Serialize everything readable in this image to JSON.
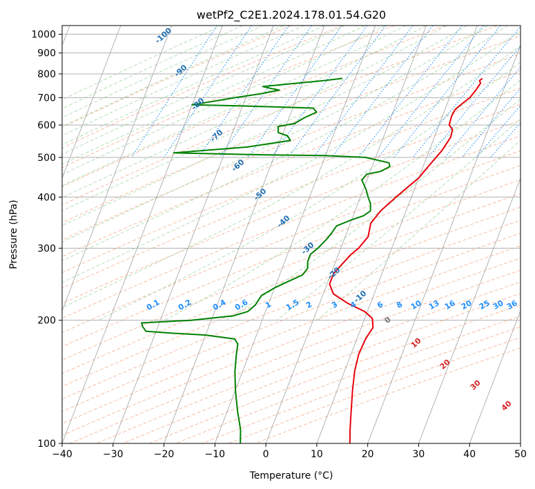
{
  "chart_data": {
    "type": "line",
    "title": "wetPf2_C2E1.2024.178.01.54.G20",
    "xlabel": "Temperature (°C)",
    "ylabel": "Pressure (hPa)",
    "xlim": [
      -40,
      50
    ],
    "ylim": [
      1050,
      100
    ],
    "y_scale": "log",
    "grid": true,
    "x_ticks": [
      -40,
      -30,
      -20,
      -10,
      0,
      10,
      20,
      30,
      40,
      50
    ],
    "x_tick_labels": [
      "−40",
      "−30",
      "−20",
      "−10",
      "0",
      "10",
      "20",
      "30",
      "40",
      "50"
    ],
    "y_ticks": [
      100,
      200,
      300,
      400,
      500,
      600,
      700,
      800,
      900,
      1000
    ],
    "y_tick_labels": [
      "100",
      "200",
      "300",
      "400",
      "500",
      "600",
      "700",
      "800",
      "900",
      "1000"
    ],
    "series": [
      {
        "color": "#e8000b",
        "points": [
          [
            15.0,
            780
          ],
          [
            14.6,
            770
          ],
          [
            15.0,
            760
          ],
          [
            14.6,
            730
          ],
          [
            14.0,
            700
          ],
          [
            13.0,
            678
          ],
          [
            12.0,
            655
          ],
          [
            11.8,
            630
          ],
          [
            12.0,
            600
          ],
          [
            13.0,
            585
          ],
          [
            13.2,
            560
          ],
          [
            12.5,
            520
          ],
          [
            11.0,
            475
          ],
          [
            10.0,
            445
          ],
          [
            9.0,
            430
          ],
          [
            7.0,
            400
          ],
          [
            5.0,
            370
          ],
          [
            4.0,
            345
          ],
          [
            4.5,
            320
          ],
          [
            3.5,
            300
          ],
          [
            2.5,
            290
          ],
          [
            1.5,
            275
          ],
          [
            0.5,
            260
          ],
          [
            0.5,
            245
          ],
          [
            2.0,
            232
          ],
          [
            5.5,
            220
          ],
          [
            9.5,
            210
          ],
          [
            11.5,
            202
          ],
          [
            12.3,
            192
          ],
          [
            11.7,
            180
          ],
          [
            11.5,
            165
          ],
          [
            12.0,
            150
          ],
          [
            13.0,
            135
          ],
          [
            14.5,
            118
          ],
          [
            15.5,
            108
          ],
          [
            16.5,
            100
          ]
        ]
      },
      {
        "color": "#008000",
        "points": [
          [
            -12.5,
            780
          ],
          [
            -16.0,
            770
          ],
          [
            -23.0,
            755
          ],
          [
            -27.5,
            745
          ],
          [
            -26.0,
            738
          ],
          [
            -24.0,
            730
          ],
          [
            -27.5,
            715
          ],
          [
            -32.0,
            700
          ],
          [
            -40.0,
            672
          ],
          [
            -30.0,
            668
          ],
          [
            -16.0,
            660
          ],
          [
            -15.0,
            645
          ],
          [
            -17.0,
            625
          ],
          [
            -18.5,
            605
          ],
          [
            -21.5,
            595
          ],
          [
            -21.0,
            575
          ],
          [
            -19.0,
            565
          ],
          [
            -18.0,
            550
          ],
          [
            -26.0,
            530
          ],
          [
            -40.0,
            513
          ],
          [
            -25.0,
            508
          ],
          [
            -10.0,
            505
          ],
          [
            -2.0,
            500
          ],
          [
            3.0,
            485
          ],
          [
            3.5,
            475
          ],
          [
            2.0,
            462
          ],
          [
            -0.5,
            455
          ],
          [
            -1.0,
            440
          ],
          [
            0.5,
            418
          ],
          [
            1.5,
            400
          ],
          [
            2.5,
            385
          ],
          [
            3.0,
            370
          ],
          [
            2.0,
            360
          ],
          [
            0.0,
            352
          ],
          [
            -2.5,
            340
          ],
          [
            -3.0,
            325
          ],
          [
            -3.5,
            315
          ],
          [
            -4.5,
            300
          ],
          [
            -5.5,
            290
          ],
          [
            -5.5,
            278
          ],
          [
            -5.0,
            268
          ],
          [
            -5.5,
            258
          ],
          [
            -7.5,
            250
          ],
          [
            -10.0,
            240
          ],
          [
            -12.0,
            230
          ],
          [
            -12.5,
            218
          ],
          [
            -13.5,
            210
          ],
          [
            -16.0,
            205
          ],
          [
            -24.0,
            200
          ],
          [
            -33.5,
            197
          ],
          [
            -33.0,
            193
          ],
          [
            -32.0,
            188
          ],
          [
            -27.0,
            186
          ],
          [
            -20.0,
            184
          ],
          [
            -14.0,
            180
          ],
          [
            -13.0,
            175
          ],
          [
            -12.5,
            165
          ],
          [
            -11.5,
            150
          ],
          [
            -10.0,
            135
          ],
          [
            -8.0,
            120
          ],
          [
            -6.0,
            108
          ],
          [
            -5.0,
            100
          ]
        ]
      }
    ],
    "dry_adiabat_labels": [
      "-100",
      "-90",
      "-80",
      "-70",
      "-60",
      "-50",
      "-40",
      "-30",
      "-20",
      "-10"
    ],
    "moist_adiabat_labels": [
      "0",
      "10",
      "20",
      "30",
      "40"
    ],
    "mixing_ratio_labels": [
      "0.1",
      "0.2",
      "0.4",
      "0.6",
      "1",
      "1.5",
      "2",
      "3",
      "4",
      "6",
      "8",
      "10",
      "13",
      "16",
      "20",
      "25",
      "30",
      "36"
    ],
    "mixing_ratio_values": [
      0.1,
      0.2,
      0.4,
      0.6,
      1,
      1.5,
      2,
      3,
      4,
      6,
      8,
      10,
      13,
      16,
      20,
      25,
      30,
      36
    ],
    "colors": {
      "temperature": "#e8000b",
      "dewpoint": "#008000",
      "isotherm": "#9a9a9a",
      "dry_adiabat": "#f4a582",
      "moist_adiabat": "#a6d8a6",
      "mixing_ratio": "#1f8fff",
      "dry_label": "#1f6fb4",
      "moist_label_zero": "#777777",
      "moist_label": "#d62728"
    }
  }
}
